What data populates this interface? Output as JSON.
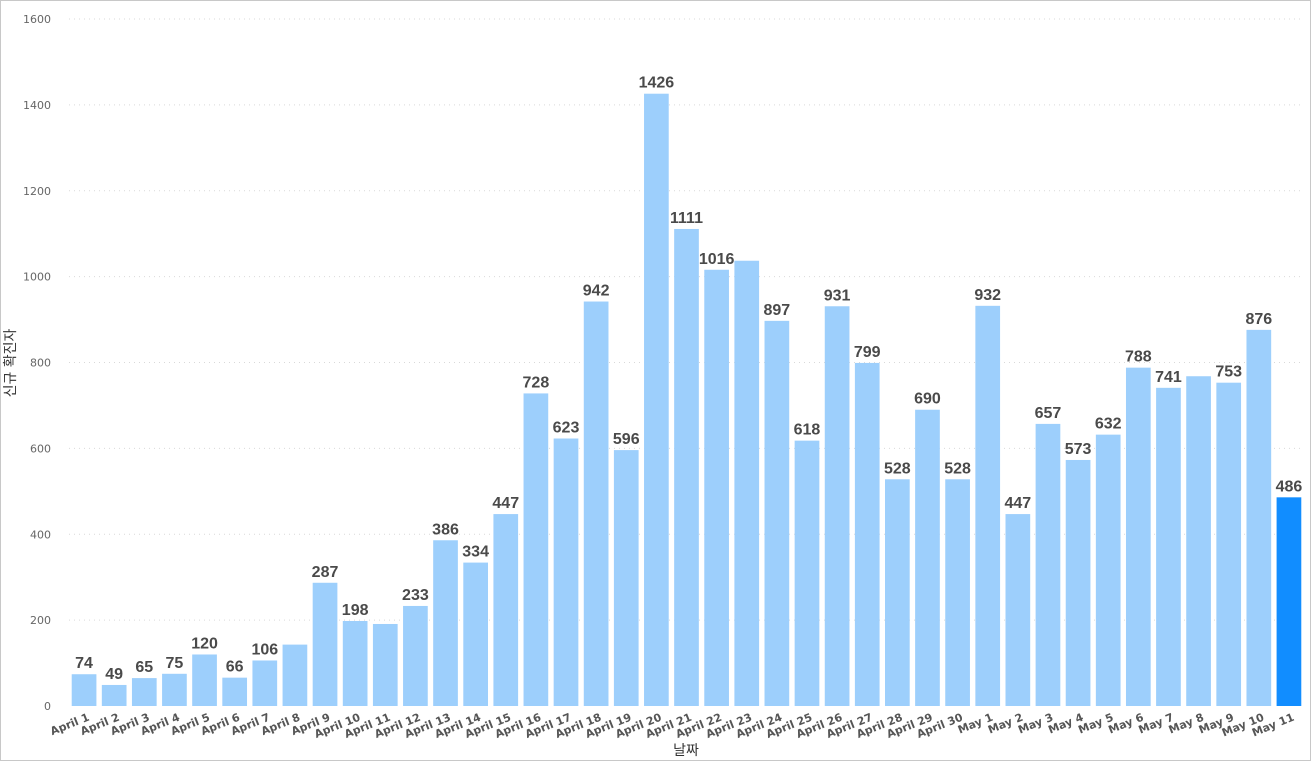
{
  "chart_data": {
    "type": "bar",
    "xlabel": "날짜",
    "ylabel": "신규 확진자",
    "ylim": [
      0,
      1600
    ],
    "yticks": [
      0,
      200,
      400,
      600,
      800,
      1000,
      1200,
      1400,
      1600
    ],
    "grid": true,
    "categories": [
      "April 1",
      "April 2",
      "April 3",
      "April 4",
      "April 5",
      "April 6",
      "April 7",
      "April 8",
      "April 9",
      "April 10",
      "April 11",
      "April 12",
      "April 13",
      "April 14",
      "April 15",
      "April 16",
      "April 17",
      "April 18",
      "April 19",
      "April 20",
      "April 21",
      "April 22",
      "April 23",
      "April 24",
      "April 25",
      "April 26",
      "April 27",
      "April 28",
      "April 29",
      "April 30",
      "May 1",
      "May 2",
      "May 3",
      "May 4",
      "May 5",
      "May 6",
      "May 7",
      "May 8",
      "May 9",
      "May 10",
      "May 11"
    ],
    "values": [
      74,
      49,
      65,
      75,
      120,
      66,
      106,
      143,
      287,
      198,
      191,
      233,
      386,
      334,
      447,
      728,
      623,
      942,
      596,
      1426,
      1111,
      1016,
      1037,
      897,
      618,
      931,
      799,
      528,
      690,
      528,
      932,
      447,
      657,
      573,
      632,
      788,
      741,
      768,
      753,
      876,
      486
    ],
    "labels": [
      "74",
      "49",
      "65",
      "75",
      "120",
      "66",
      "106",
      "",
      "287",
      "198",
      "",
      "233",
      "386",
      "334",
      "447",
      "728",
      "623",
      "942",
      "596",
      "1426",
      "1111",
      "1016",
      "",
      "897",
      "618",
      "931",
      "799",
      "528",
      "690",
      "528",
      "932",
      "447",
      "657",
      "573",
      "632",
      "788",
      "741",
      "",
      "753",
      "876",
      "486"
    ],
    "colors": {
      "bar": "#9dcffc",
      "highlight": "#118dff"
    },
    "highlight_index": 40
  }
}
